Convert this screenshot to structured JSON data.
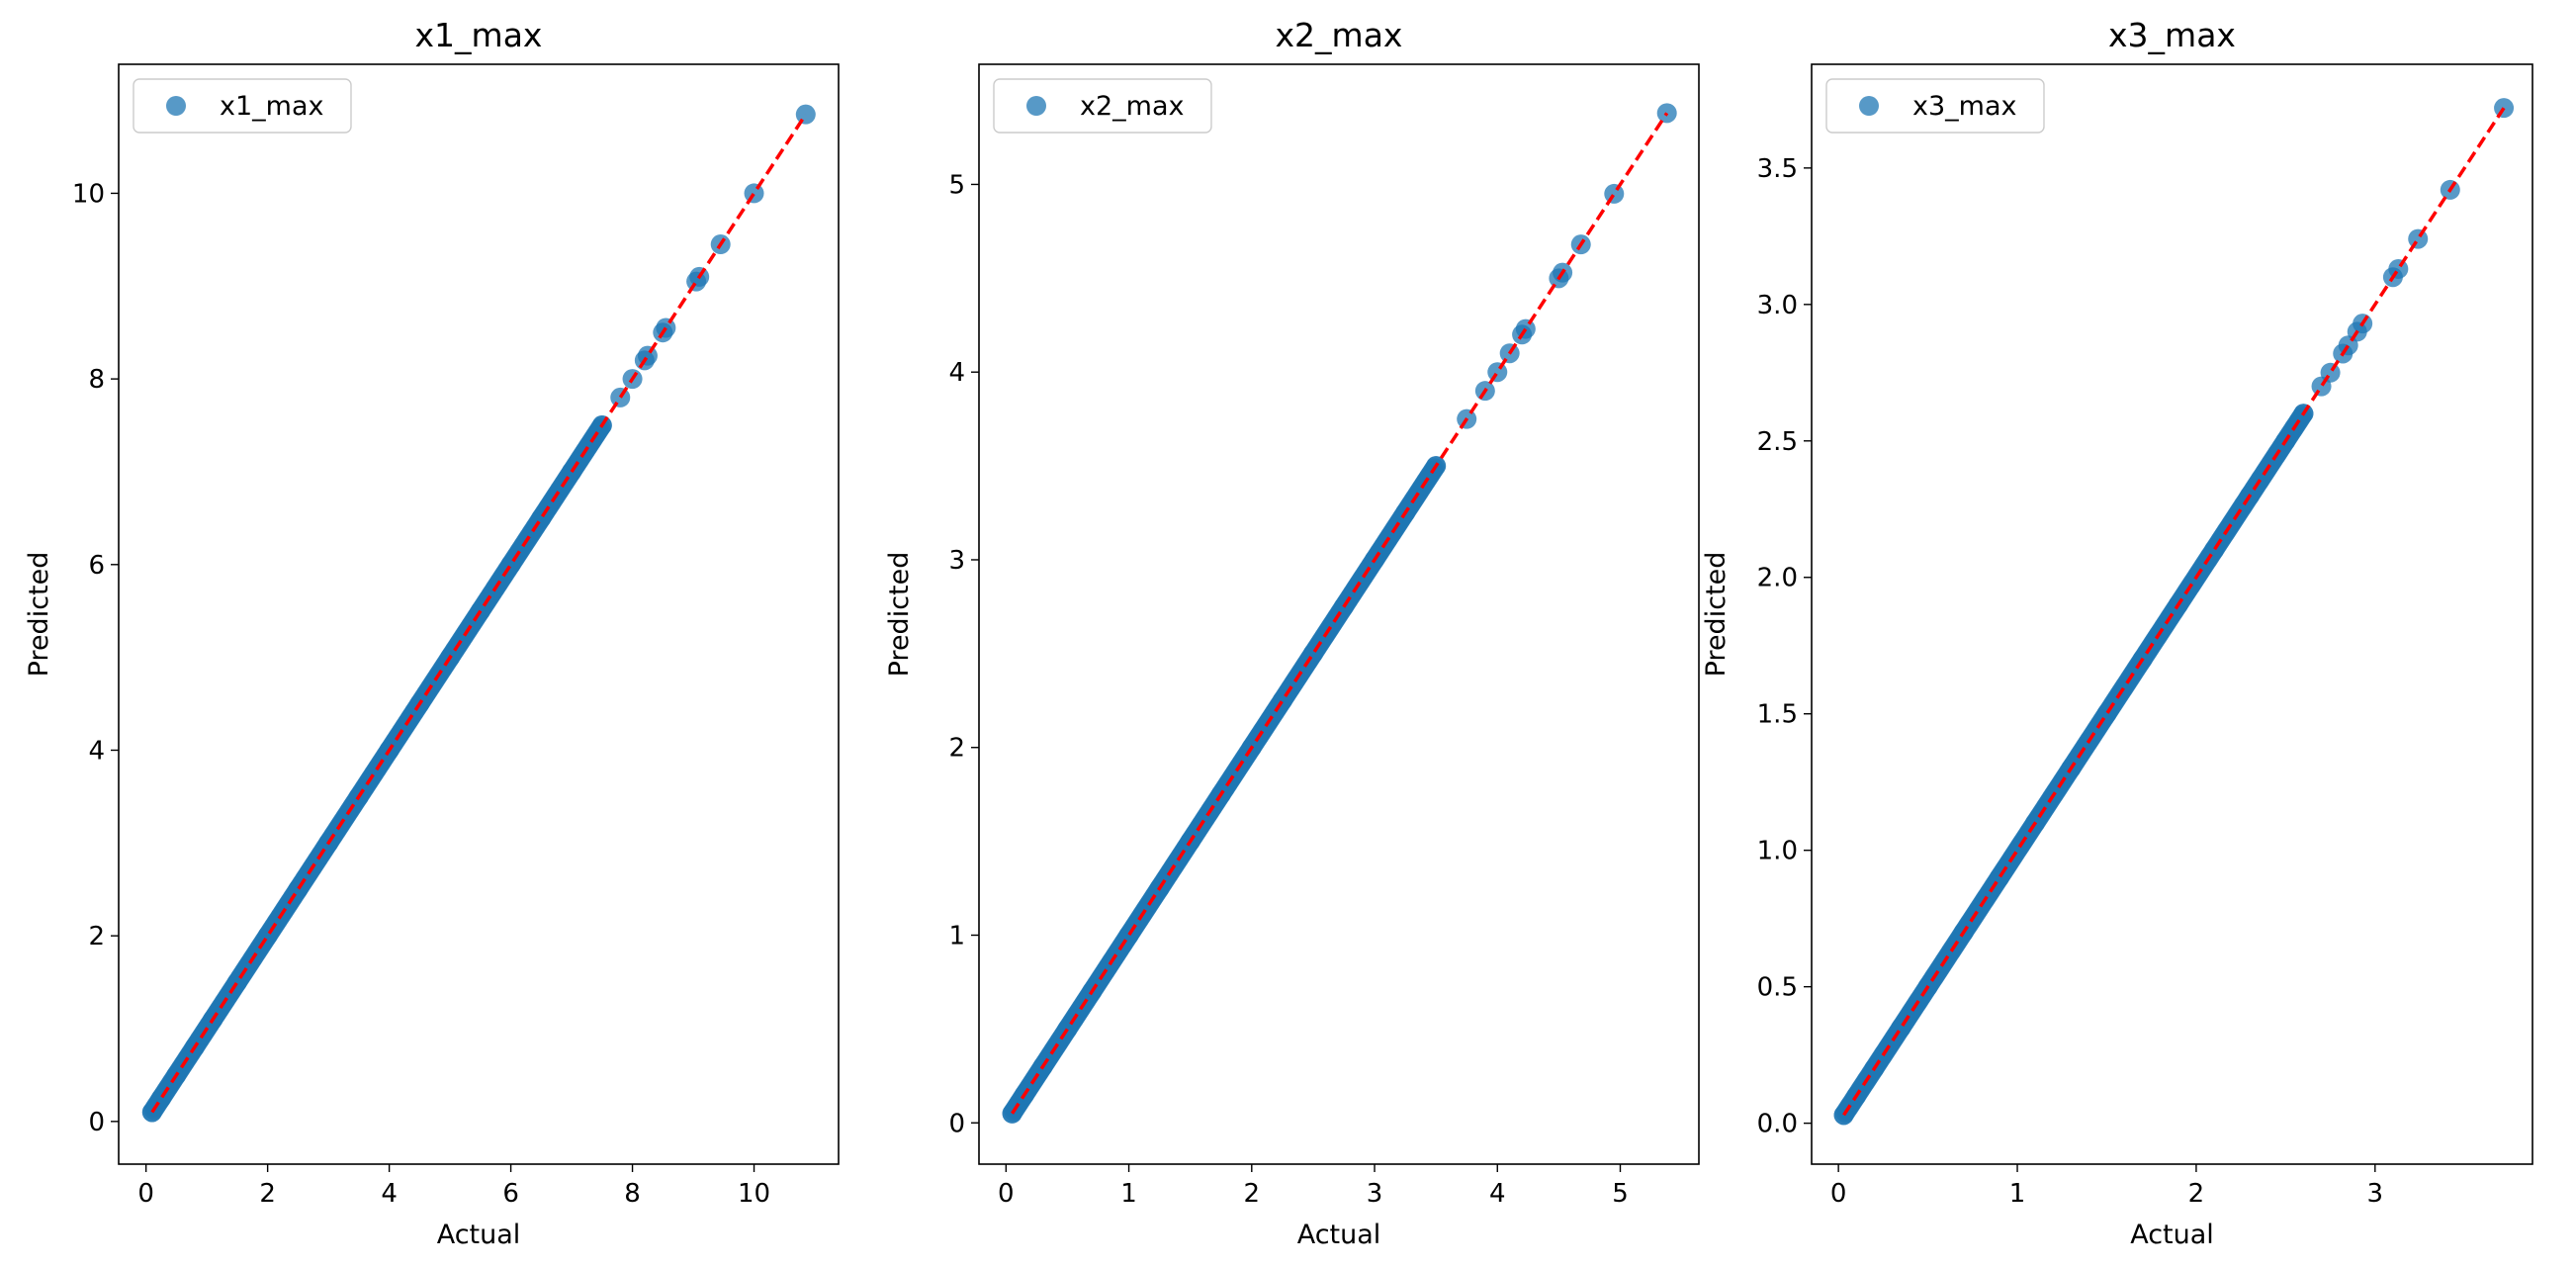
{
  "chart_data": [
    {
      "type": "scatter",
      "title": "x1_max",
      "xlabel": "Actual",
      "ylabel": "Predicted",
      "xlim": [
        -0.45,
        11.39
      ],
      "ylim": [
        -0.46,
        11.39
      ],
      "xticks": [
        0,
        2,
        4,
        6,
        8,
        10
      ],
      "yticks": [
        0,
        2,
        4,
        6,
        8,
        10
      ],
      "grid": false,
      "legend": "upper left",
      "series": [
        {
          "name": "x1_max",
          "color": "#1f77b4",
          "marker": "circle",
          "x": [
            0.1,
            0.25,
            0.5,
            0.8,
            1.1,
            1.5,
            2.0,
            2.5,
            3.0,
            3.5,
            4.0,
            4.5,
            5.0,
            5.5,
            6.0,
            6.5,
            7.0,
            7.5,
            7.8,
            8.0,
            8.2,
            8.25,
            8.5,
            8.55,
            9.05,
            9.1,
            9.45,
            10.0,
            10.85
          ],
          "y": [
            0.1,
            0.25,
            0.5,
            0.8,
            1.1,
            1.5,
            2.0,
            2.5,
            3.0,
            3.5,
            4.0,
            4.5,
            5.0,
            5.5,
            6.0,
            6.5,
            7.0,
            7.5,
            7.8,
            8.0,
            8.2,
            8.25,
            8.5,
            8.55,
            9.05,
            9.1,
            9.45,
            10.0,
            10.85
          ]
        }
      ],
      "reference_line": {
        "style": "dashed",
        "color": "#ff0000",
        "from": [
          0.1,
          0.1
        ],
        "to": [
          10.85,
          10.85
        ]
      }
    },
    {
      "type": "scatter",
      "title": "x2_max",
      "xlabel": "Actual",
      "ylabel": "Predicted",
      "xlim": [
        -0.22,
        5.64
      ],
      "ylim": [
        -0.22,
        5.64
      ],
      "xticks": [
        0,
        1,
        2,
        3,
        4,
        5
      ],
      "yticks": [
        0,
        1,
        2,
        3,
        4,
        5
      ],
      "grid": false,
      "legend": "upper left",
      "series": [
        {
          "name": "x2_max",
          "color": "#1f77b4",
          "marker": "circle",
          "x": [
            0.05,
            0.15,
            0.3,
            0.5,
            0.7,
            1.0,
            1.25,
            1.5,
            1.75,
            2.0,
            2.25,
            2.5,
            2.75,
            3.0,
            3.25,
            3.5,
            3.75,
            3.9,
            4.0,
            4.1,
            4.2,
            4.23,
            4.5,
            4.53,
            4.68,
            4.95,
            5.38
          ],
          "y": [
            0.05,
            0.15,
            0.3,
            0.5,
            0.7,
            1.0,
            1.25,
            1.5,
            1.75,
            2.0,
            2.25,
            2.5,
            2.75,
            3.0,
            3.25,
            3.5,
            3.75,
            3.9,
            4.0,
            4.1,
            4.2,
            4.23,
            4.5,
            4.53,
            4.68,
            4.95,
            5.38
          ]
        }
      ],
      "reference_line": {
        "style": "dashed",
        "color": "#ff0000",
        "from": [
          0.05,
          0.05
        ],
        "to": [
          5.38,
          5.38
        ]
      }
    },
    {
      "type": "scatter",
      "title": "x3_max",
      "xlabel": "Actual",
      "ylabel": "Predicted",
      "xlim": [
        -0.15,
        3.88
      ],
      "ylim": [
        -0.15,
        3.88
      ],
      "xticks": [
        0,
        1,
        2,
        3
      ],
      "yticks": [
        0.0,
        0.5,
        1.0,
        1.5,
        2.0,
        2.5,
        3.0,
        3.5
      ],
      "ytick_labels": [
        "0.0",
        "0.5",
        "1.0",
        "1.5",
        "2.0",
        "2.5",
        "3.0",
        "3.5"
      ],
      "grid": false,
      "legend": "upper left",
      "series": [
        {
          "name": "x3_max",
          "color": "#1f77b4",
          "marker": "circle",
          "x": [
            0.03,
            0.1,
            0.2,
            0.35,
            0.5,
            0.7,
            0.9,
            1.1,
            1.3,
            1.5,
            1.7,
            1.9,
            2.1,
            2.3,
            2.5,
            2.6,
            2.7,
            2.75,
            2.82,
            2.85,
            2.9,
            2.93,
            3.1,
            3.13,
            3.24,
            3.42,
            3.72
          ],
          "y": [
            0.03,
            0.1,
            0.2,
            0.35,
            0.5,
            0.7,
            0.9,
            1.1,
            1.3,
            1.5,
            1.7,
            1.9,
            2.1,
            2.3,
            2.5,
            2.6,
            2.7,
            2.75,
            2.82,
            2.85,
            2.9,
            2.93,
            3.1,
            3.13,
            3.24,
            3.42,
            3.72
          ]
        }
      ],
      "reference_line": {
        "style": "dashed",
        "color": "#ff0000",
        "from": [
          0.03,
          0.03
        ],
        "to": [
          3.72,
          3.72
        ]
      }
    }
  ]
}
